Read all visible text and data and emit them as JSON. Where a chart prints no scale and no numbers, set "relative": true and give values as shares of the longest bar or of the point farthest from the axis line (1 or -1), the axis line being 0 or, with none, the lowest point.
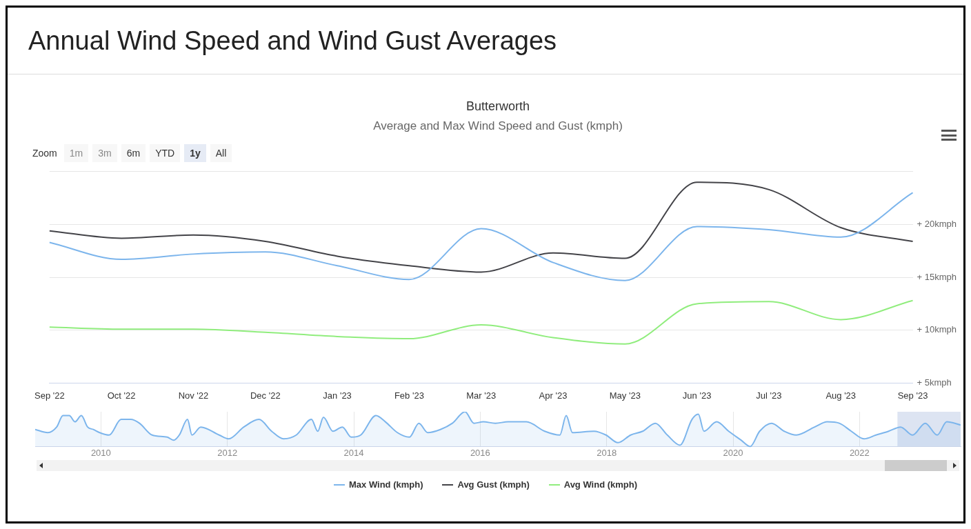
{
  "chart_data": [
    {
      "type": "line",
      "title": "Butterworth",
      "subtitle": "Average and Max Wind Speed and Gust (kmph)",
      "annotations": [
        "Annual Wind Speed and Wind Gust Averages",
        "Zoom",
        "1m",
        "3m",
        "6m",
        "YTD",
        "1y",
        "All"
      ],
      "categories": [
        "Sep '22",
        "Oct '22",
        "Nov '22",
        "Dec '22",
        "Jan '23",
        "Feb '23",
        "Mar '23",
        "Apr '23",
        "May '23",
        "Jun '23",
        "Jul '23",
        "Aug '23",
        "Sep '23"
      ],
      "series": [
        {
          "name": "Max Wind (kmph)",
          "color": "#7cb5ec",
          "values": [
            18.3,
            16.7,
            17.2,
            17.4,
            16.1,
            14.8,
            19.6,
            16.4,
            14.7,
            19.8,
            19.5,
            18.8,
            23.0
          ]
        },
        {
          "name": "Avg Gust (kmph)",
          "color": "#434348",
          "values": [
            19.4,
            18.7,
            19.0,
            18.4,
            17.0,
            16.1,
            15.5,
            17.3,
            16.8,
            24.0,
            23.3,
            19.7,
            18.4
          ]
        },
        {
          "name": "Avg Wind (kmph)",
          "color": "#90ed7d",
          "values": [
            10.3,
            10.1,
            10.1,
            9.8,
            9.4,
            9.2,
            10.5,
            9.3,
            8.7,
            12.5,
            12.7,
            11.0,
            12.8
          ]
        }
      ],
      "ylim": [
        5,
        25
      ],
      "yticks": [
        {
          "value": 5,
          "label": "+ 5kmph"
        },
        {
          "value": 10,
          "label": "+ 10kmph"
        },
        {
          "value": 15,
          "label": "+ 15kmph"
        },
        {
          "value": 20,
          "label": "+ 20kmph"
        },
        {
          "value": 25,
          "label": null
        }
      ],
      "grid": "y",
      "legend": "bottom",
      "marker": "none",
      "line_style": "solid"
    },
    {
      "type": "area",
      "relative": true,
      "xlim": [
        2008.96,
        2023.6
      ],
      "xticks": [
        2010,
        2012,
        2014,
        2016,
        2018,
        2020,
        2022
      ],
      "grid": "x",
      "marker": "none",
      "bands": [
        {
          "axis": "x",
          "from": 2022.6,
          "to": 2023.6,
          "color": "#ccd6eb"
        }
      ],
      "series": [
        {
          "color": "#7cb5ec",
          "x": [
            2008.96,
            2009.16,
            2009.3,
            2009.4,
            2009.5,
            2009.59,
            2009.69,
            2009.79,
            2009.88,
            2009.98,
            2010.13,
            2010.32,
            2010.47,
            2010.61,
            2010.81,
            2011.05,
            2011.15,
            2011.24,
            2011.37,
            2011.44,
            2011.58,
            2011.87,
            2012.02,
            2012.26,
            2012.5,
            2012.7,
            2012.89,
            2013.09,
            2013.33,
            2013.43,
            2013.52,
            2013.67,
            2013.82,
            2013.96,
            2014.11,
            2014.35,
            2014.5,
            2014.69,
            2014.88,
            2015.03,
            2015.17,
            2015.37,
            2015.56,
            2015.76,
            2015.9,
            2016.05,
            2016.24,
            2016.44,
            2016.73,
            2017.02,
            2017.26,
            2017.36,
            2017.46,
            2017.8,
            2017.99,
            2018.18,
            2018.38,
            2018.57,
            2018.77,
            2018.96,
            2019.16,
            2019.35,
            2019.45,
            2019.54,
            2019.74,
            2019.93,
            2020.13,
            2020.27,
            2020.42,
            2020.61,
            2020.81,
            2021.0,
            2021.29,
            2021.49,
            2021.68,
            2021.87,
            2022.07,
            2022.26,
            2022.46,
            2022.65,
            2022.84,
            2023.04,
            2023.23,
            2023.38,
            2023.6
          ],
          "values": [
            0.49,
            0.4,
            0.56,
            0.89,
            0.89,
            0.71,
            0.89,
            0.56,
            0.49,
            0.4,
            0.33,
            0.78,
            0.78,
            0.67,
            0.33,
            0.27,
            0.18,
            0.33,
            0.78,
            0.33,
            0.56,
            0.33,
            0.22,
            0.56,
            0.78,
            0.44,
            0.22,
            0.33,
            0.78,
            0.44,
            0.84,
            0.44,
            0.56,
            0.27,
            0.33,
            0.89,
            0.71,
            0.4,
            0.27,
            0.67,
            0.4,
            0.49,
            0.67,
            1,
            0.67,
            0.71,
            0.67,
            0.71,
            0.71,
            0.44,
            0.33,
            0.89,
            0.4,
            0.44,
            0.33,
            0.11,
            0.33,
            0.44,
            0.67,
            0.33,
            0.04,
            0.78,
            0.93,
            0.44,
            0.71,
            0.44,
            0.18,
            0,
            0.44,
            0.67,
            0.44,
            0.33,
            0.56,
            0.71,
            0.67,
            0.44,
            0.22,
            0.33,
            0.44,
            0.56,
            0.33,
            0.67,
            0.33,
            0.71,
            0.62
          ]
        }
      ]
    }
  ]
}
